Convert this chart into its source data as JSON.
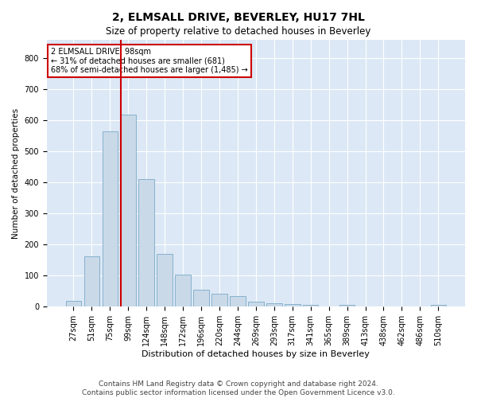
{
  "title": "2, ELMSALL DRIVE, BEVERLEY, HU17 7HL",
  "subtitle": "Size of property relative to detached houses in Beverley",
  "xlabel": "Distribution of detached houses by size in Beverley",
  "ylabel": "Number of detached properties",
  "bar_labels": [
    "27sqm",
    "51sqm",
    "75sqm",
    "99sqm",
    "124sqm",
    "148sqm",
    "172sqm",
    "196sqm",
    "220sqm",
    "244sqm",
    "269sqm",
    "293sqm",
    "317sqm",
    "341sqm",
    "365sqm",
    "389sqm",
    "413sqm",
    "438sqm",
    "462sqm",
    "486sqm",
    "510sqm"
  ],
  "bar_values": [
    20,
    163,
    565,
    620,
    410,
    170,
    103,
    55,
    43,
    33,
    15,
    10,
    9,
    6,
    0,
    6,
    0,
    0,
    0,
    0,
    7
  ],
  "bar_color": "#c9d9e8",
  "bar_edge_color": "#7aaac8",
  "vline_x": 3.0,
  "vline_color": "#cc0000",
  "annotation_text": "2 ELMSALL DRIVE: 98sqm\n← 31% of detached houses are smaller (681)\n68% of semi-detached houses are larger (1,485) →",
  "annotation_box_color": "#ffffff",
  "annotation_box_edge": "#cc0000",
  "ylim": [
    0,
    860
  ],
  "yticks": [
    0,
    100,
    200,
    300,
    400,
    500,
    600,
    700,
    800
  ],
  "footnote": "Contains HM Land Registry data © Crown copyright and database right 2024.\nContains public sector information licensed under the Open Government Licence v3.0.",
  "plot_bg_color": "#dce8f5",
  "fig_bg_color": "#ffffff",
  "title_fontsize": 10,
  "subtitle_fontsize": 8.5,
  "xlabel_fontsize": 8,
  "ylabel_fontsize": 7.5,
  "tick_fontsize": 7,
  "footnote_fontsize": 6.5
}
